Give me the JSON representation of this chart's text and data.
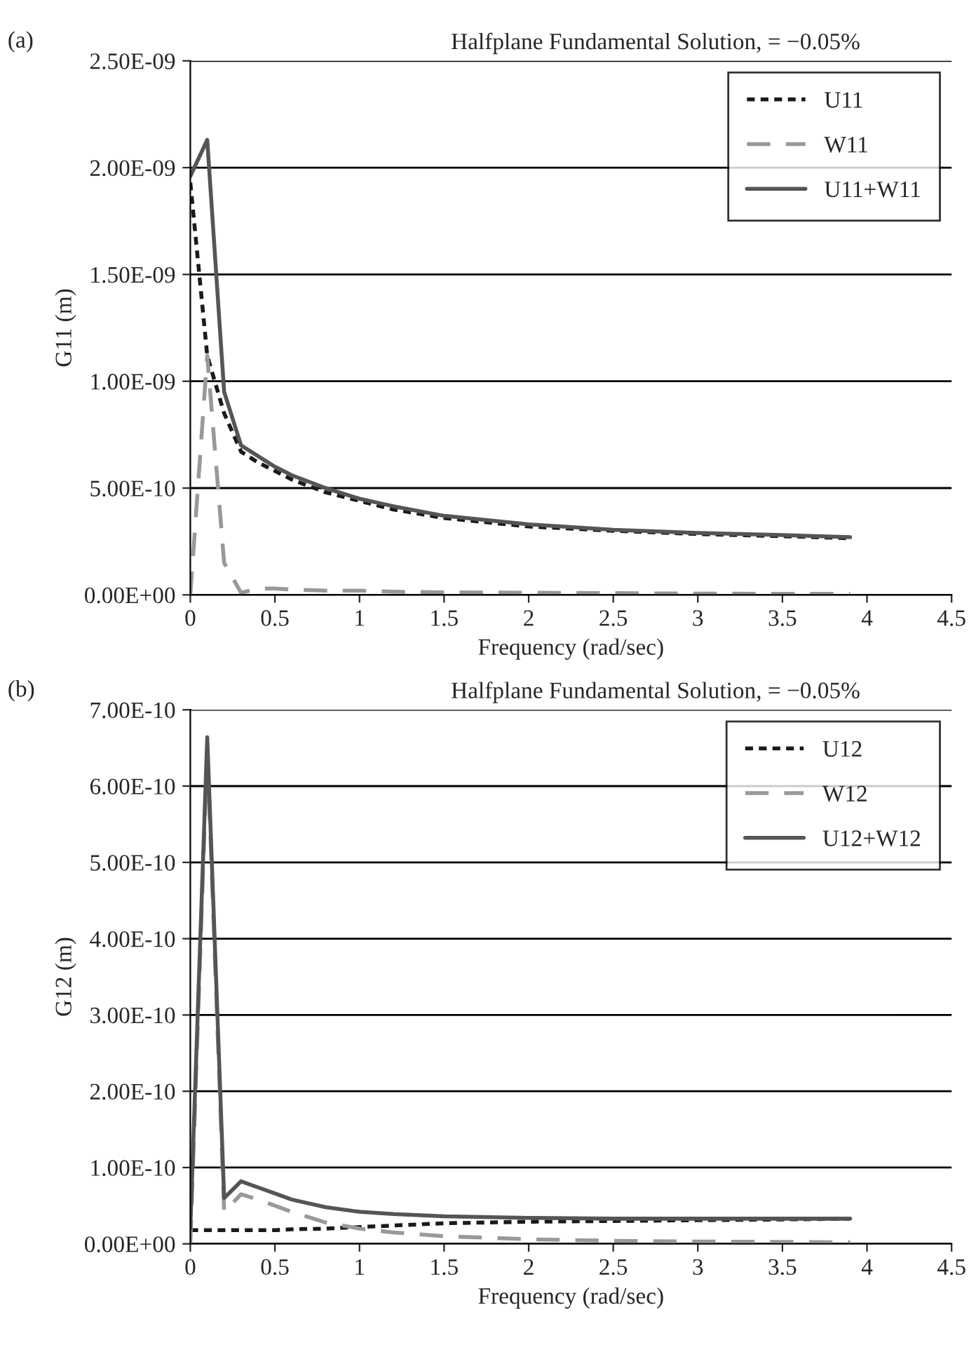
{
  "chart_data": [
    {
      "type": "line",
      "title": "Halfplane Fundamental Solution, = −0.05%",
      "xlabel": "Frequency (rad/sec)",
      "ylabel": "G11 (m)",
      "annotations": [
        "(a)"
      ],
      "x": [
        0,
        0.1,
        0.2,
        0.3,
        0.4,
        0.5,
        0.6,
        0.8,
        1.0,
        1.2,
        1.5,
        2.0,
        2.5,
        3.0,
        3.5,
        3.9
      ],
      "series": [
        {
          "name": "U11",
          "color": "#1a1a1a",
          "line_style": "dotted",
          "values": [
            1.93e-09,
            1.12e-09,
            8.5e-10,
            6.7e-10,
            6.2e-10,
            5.8e-10,
            5.4e-10,
            4.8e-10,
            4.4e-10,
            4e-10,
            3.6e-10,
            3.2e-10,
            3e-10,
            2.85e-10,
            2.75e-10,
            2.65e-10
          ]
        },
        {
          "name": "W11",
          "color": "#999999",
          "line_style": "dashed",
          "values": [
            0,
            1.12e-09,
            1.5e-10,
            1e-11,
            3e-11,
            3e-11,
            2.5e-11,
            2e-11,
            2e-11,
            1.5e-11,
            1.2e-11,
            1e-11,
            8e-12,
            6e-12,
            5e-12,
            5e-12
          ]
        },
        {
          "name": "U11+W11",
          "color": "#555555",
          "line_style": "solid",
          "values": [
            1.96e-09,
            2.13e-09,
            9.5e-10,
            7e-10,
            6.5e-10,
            6e-10,
            5.6e-10,
            5e-10,
            4.5e-10,
            4.15e-10,
            3.7e-10,
            3.3e-10,
            3.05e-10,
            2.9e-10,
            2.8e-10,
            2.7e-10
          ]
        }
      ],
      "xlim": [
        0,
        4.5
      ],
      "xticks": [
        0,
        0.5,
        1,
        1.5,
        2,
        2.5,
        3,
        3.5,
        4,
        4.5
      ],
      "ylim": [
        0,
        2.5e-09
      ],
      "yticks": [
        {
          "value": 0,
          "label": "0.00E+00"
        },
        {
          "value": 5e-10,
          "label": "5.00E-10"
        },
        {
          "value": 1e-09,
          "label": "1.00E-09"
        },
        {
          "value": 1.5e-09,
          "label": "1.50E-09"
        },
        {
          "value": 2e-09,
          "label": "2.00E-09"
        },
        {
          "value": 2.5e-09,
          "label": "2.50E-09"
        }
      ],
      "grid": "y",
      "legend": "top right"
    },
    {
      "type": "line",
      "title": "Halfplane Fundamental Solution, = −0.05%",
      "xlabel": "Frequency (rad/sec)",
      "ylabel": "G12 (m)",
      "annotations": [
        "(b)"
      ],
      "x": [
        0,
        0.1,
        0.2,
        0.3,
        0.4,
        0.5,
        0.6,
        0.8,
        1.0,
        1.2,
        1.5,
        2.0,
        2.5,
        3.0,
        3.5,
        3.9
      ],
      "series": [
        {
          "name": "U12",
          "color": "#1a1a1a",
          "line_style": "dotted",
          "values": [
            1.8e-11,
            1.8e-11,
            1.8e-11,
            1.8e-11,
            1.8e-11,
            1.8e-11,
            1.9e-11,
            2e-11,
            2.2e-11,
            2.4e-11,
            2.7e-11,
            2.9e-11,
            3e-11,
            3.1e-11,
            3.2e-11,
            3.3e-11
          ]
        },
        {
          "name": "W12",
          "color": "#999999",
          "line_style": "dashed",
          "values": [
            0,
            6.5e-10,
            4.2e-11,
            6.5e-11,
            5.8e-11,
            5e-11,
            4.2e-11,
            2.8e-11,
            2e-11,
            1.5e-11,
            1e-11,
            6e-12,
            4e-12,
            3e-12,
            2.5e-12,
            2e-12
          ]
        },
        {
          "name": "U12+W12",
          "color": "#555555",
          "line_style": "solid",
          "values": [
            2e-11,
            6.64e-10,
            6e-11,
            8.2e-11,
            7.4e-11,
            6.6e-11,
            5.8e-11,
            4.8e-11,
            4.2e-11,
            3.9e-11,
            3.6e-11,
            3.4e-11,
            3.3e-11,
            3.3e-11,
            3.3e-11,
            3.3e-11
          ]
        }
      ],
      "xlim": [
        0,
        4.5
      ],
      "xticks": [
        0,
        0.5,
        1,
        1.5,
        2,
        2.5,
        3,
        3.5,
        4,
        4.5
      ],
      "ylim": [
        0,
        7e-10
      ],
      "yticks": [
        {
          "value": 0,
          "label": "0.00E+00"
        },
        {
          "value": 1e-10,
          "label": "1.00E-10"
        },
        {
          "value": 2e-10,
          "label": "2.00E-10"
        },
        {
          "value": 3e-10,
          "label": "3.00E-10"
        },
        {
          "value": 4e-10,
          "label": "4.00E-10"
        },
        {
          "value": 5e-10,
          "label": "5.00E-10"
        },
        {
          "value": 6e-10,
          "label": "6.00E-10"
        },
        {
          "value": 7e-10,
          "label": "7.00E-10"
        }
      ],
      "grid": "y",
      "legend": "top right"
    }
  ]
}
